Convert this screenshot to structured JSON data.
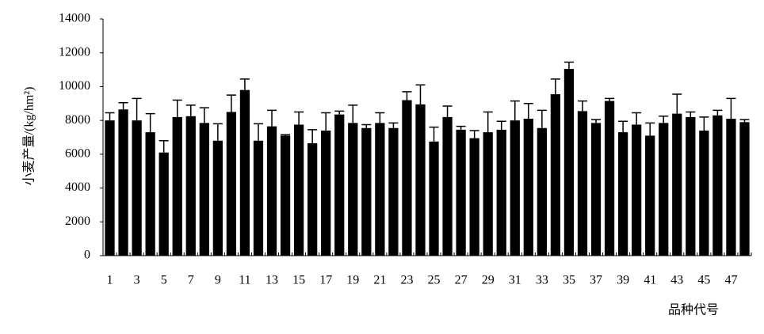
{
  "chart_data": {
    "type": "bar",
    "y_label": "小麦产量/(kg/hm²)",
    "x_label": "品种代号",
    "categories": [
      "1",
      null,
      "3",
      null,
      "5",
      null,
      "7",
      null,
      "9",
      null,
      "11",
      null,
      "13",
      null,
      "15",
      null,
      "17",
      null,
      "19",
      null,
      "21",
      null,
      "23",
      null,
      "25",
      null,
      "27",
      null,
      "29",
      null,
      "31",
      null,
      "33",
      null,
      "35",
      null,
      "37",
      null,
      "39",
      null,
      "41",
      null,
      "43",
      null,
      "45",
      null,
      "47",
      null
    ],
    "values": [
      8000,
      8650,
      8000,
      7300,
      6100,
      8200,
      8250,
      7850,
      6800,
      8500,
      9800,
      6800,
      7650,
      7100,
      7750,
      6650,
      7400,
      8350,
      7850,
      7550,
      7850,
      7550,
      9200,
      8950,
      6750,
      8200,
      7450,
      6950,
      7300,
      7450,
      8000,
      8100,
      7550,
      9550,
      11050,
      8550,
      7850,
      9150,
      7300,
      7750,
      7100,
      7850,
      8400,
      8200,
      7400,
      8300,
      8100,
      7900
    ],
    "errors": [
      450,
      400,
      1300,
      1100,
      700,
      1000,
      650,
      900,
      1000,
      1000,
      650,
      1000,
      950,
      50,
      750,
      800,
      1050,
      200,
      1050,
      200,
      600,
      300,
      500,
      1150,
      850,
      650,
      200,
      450,
      1200,
      500,
      1150,
      900,
      1050,
      900,
      400,
      600,
      200,
      150,
      650,
      700,
      750,
      400,
      1150,
      300,
      800,
      300,
      1200,
      150
    ],
    "color": "#000000",
    "ylim": [
      0,
      14000
    ],
    "yticks": [
      0,
      2000,
      4000,
      6000,
      8000,
      10000,
      12000,
      14000
    ],
    "grid": false
  }
}
